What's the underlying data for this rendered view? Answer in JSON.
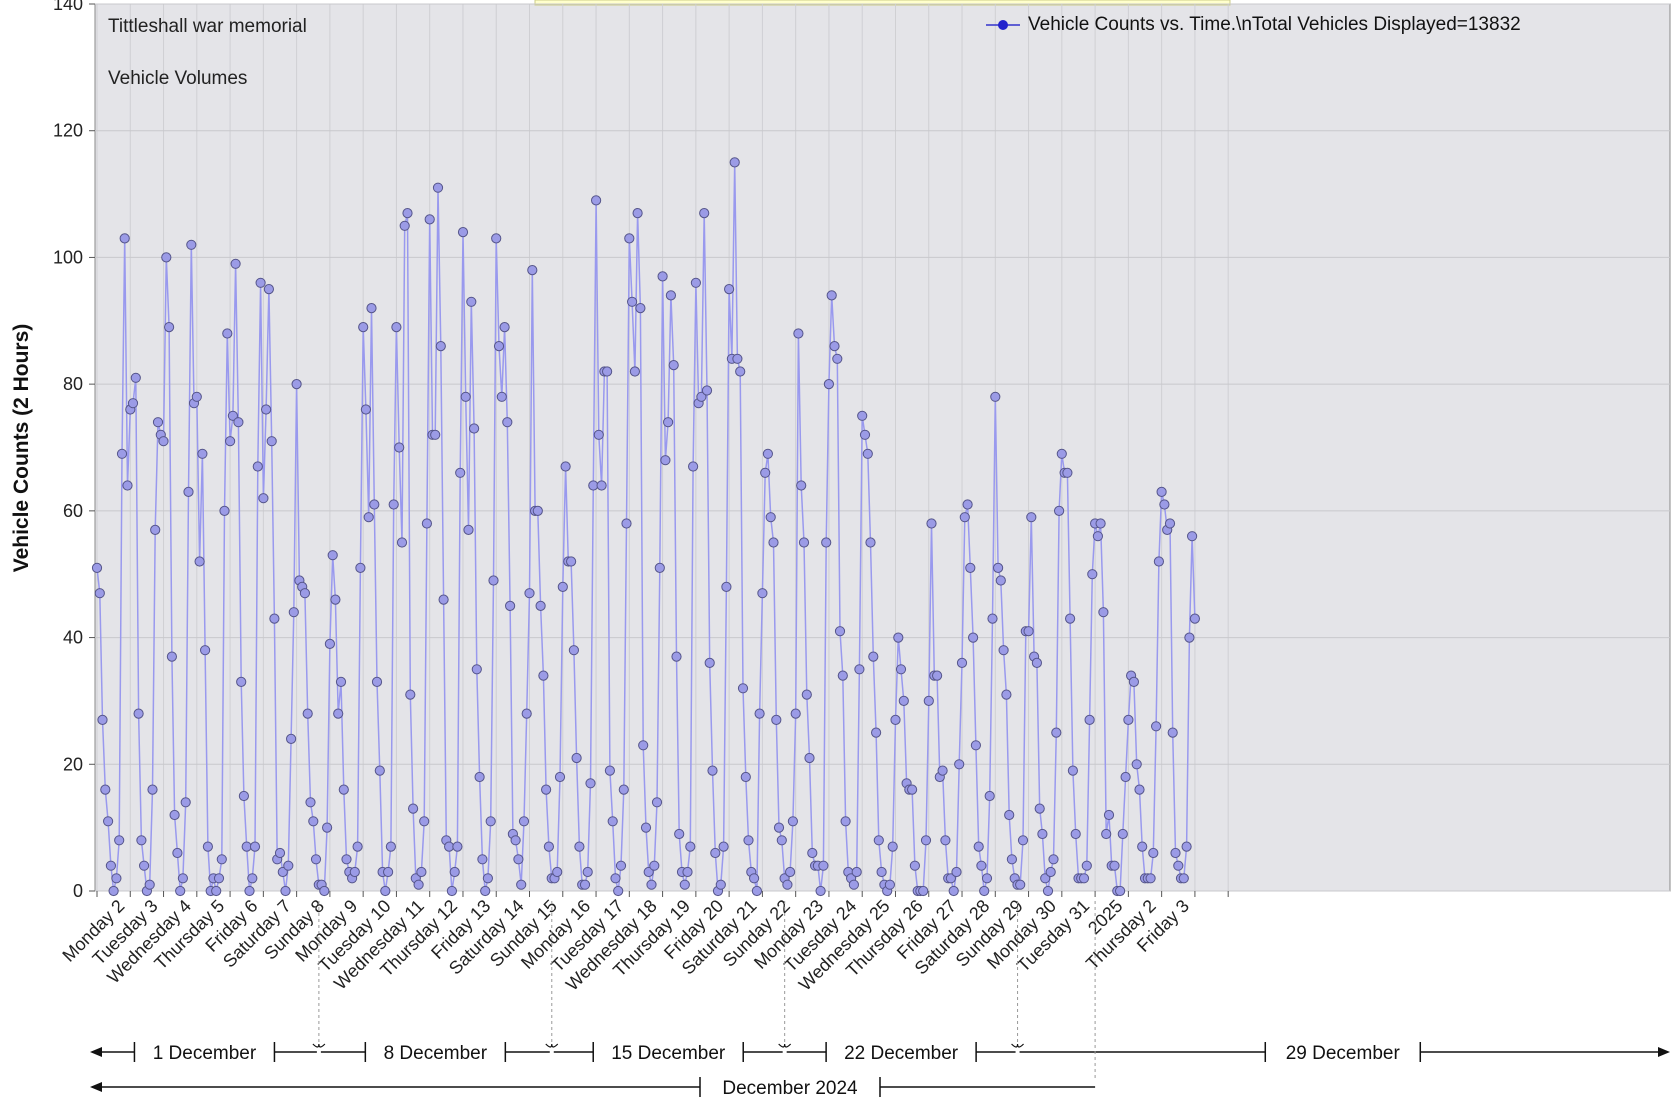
{
  "chart_data": {
    "type": "line",
    "title": "Tittleshall war memorial",
    "subtitle": "Vehicle Volumes",
    "ylabel": "Vehicle Counts (2 Hours)",
    "xlabel": "",
    "ylim": [
      0,
      140
    ],
    "yticks": [
      0,
      20,
      40,
      60,
      80,
      100,
      120,
      140
    ],
    "grid": true,
    "legend": "top-right",
    "series": [
      {
        "name": "Vehicle Counts vs. Time.\\nTotal Vehicles Displayed=13832",
        "color": "#9999ee",
        "marker_color": "#9b9be6",
        "values": [
          51,
          47,
          27,
          16,
          11,
          4,
          0,
          2,
          8,
          69,
          103,
          64,
          76,
          77,
          81,
          28,
          8,
          4,
          0,
          1,
          16,
          57,
          74,
          72,
          71,
          100,
          89,
          37,
          12,
          6,
          0,
          2,
          14,
          63,
          102,
          77,
          78,
          52,
          69,
          38,
          7,
          0,
          2,
          0,
          2,
          5,
          60,
          88,
          71,
          75,
          99,
          74,
          33,
          15,
          7,
          0,
          2,
          7,
          67,
          96,
          62,
          76,
          95,
          71,
          43,
          5,
          6,
          3,
          0,
          4,
          24,
          44,
          80,
          49,
          48,
          47,
          28,
          14,
          11,
          5,
          1,
          1,
          0,
          10,
          39,
          53,
          46,
          28,
          33,
          16,
          5,
          3,
          2,
          3,
          7,
          51,
          89,
          76,
          59,
          92,
          61,
          33,
          19,
          3,
          0,
          3,
          7,
          61,
          89,
          70,
          55,
          105,
          107,
          31,
          13,
          2,
          1,
          3,
          11,
          58,
          106,
          72,
          72,
          111,
          86,
          46,
          8,
          7,
          0,
          3,
          7,
          66,
          104,
          78,
          57,
          93,
          73,
          35,
          18,
          5,
          0,
          2,
          11,
          49,
          103,
          86,
          78,
          89,
          74,
          45,
          9,
          8,
          5,
          1,
          11,
          28,
          47,
          98,
          60,
          60,
          45,
          34,
          16,
          7,
          2,
          2,
          3,
          18,
          48,
          67,
          52,
          52,
          38,
          21,
          7,
          1,
          1,
          3,
          17,
          64,
          109,
          72,
          64,
          82,
          82,
          19,
          11,
          2,
          0,
          4,
          16,
          58,
          103,
          93,
          82,
          107,
          92,
          23,
          10,
          3,
          1,
          4,
          14,
          51,
          97,
          68,
          74,
          94,
          83,
          37,
          9,
          3,
          1,
          3,
          7,
          67,
          96,
          77,
          78,
          107,
          79,
          36,
          19,
          6,
          0,
          1,
          7,
          48,
          95,
          84,
          115,
          84,
          82,
          32,
          18,
          8,
          3,
          2,
          0,
          28,
          47,
          66,
          69,
          59,
          55,
          27,
          10,
          8,
          2,
          1,
          3,
          11,
          28,
          88,
          64,
          55,
          31,
          21,
          6,
          4,
          4,
          0,
          4,
          55,
          80,
          94,
          86,
          84,
          41,
          34,
          11,
          3,
          2,
          1,
          3,
          35,
          75,
          72,
          69,
          55,
          37,
          25,
          8,
          3,
          1,
          0,
          1,
          7,
          27,
          40,
          35,
          30,
          17,
          16,
          16,
          4,
          0,
          0,
          0,
          8,
          30,
          58,
          34,
          34,
          18,
          19,
          8,
          2,
          2,
          0,
          3,
          20,
          36,
          59,
          61,
          51,
          40,
          23,
          7,
          4,
          0,
          2,
          15,
          43,
          78,
          51,
          49,
          38,
          31,
          12,
          5,
          2,
          1,
          1,
          8,
          41,
          41,
          59,
          37,
          36,
          13,
          9,
          2,
          0,
          3,
          5,
          25,
          60,
          69,
          66,
          66,
          43,
          19,
          9,
          2,
          2,
          2,
          4,
          27,
          50,
          58,
          56,
          58,
          44,
          9,
          12,
          4,
          4,
          0,
          0,
          9,
          18,
          27,
          34,
          33,
          20,
          16,
          7,
          2,
          2,
          2,
          6,
          26,
          52,
          63,
          61,
          57,
          58,
          25,
          6,
          4,
          2,
          2,
          7,
          40,
          56,
          43
        ]
      }
    ],
    "day_labels": [
      "Monday 2",
      "Tuesday 3",
      "Wednesday 4",
      "Thursday 5",
      "Friday 6",
      "Saturday 7",
      "Sunday 8",
      "Monday 9",
      "Tuesday 10",
      "Wednesday 11",
      "Thursday 12",
      "Friday 13",
      "Saturday 14",
      "Sunday 15",
      "Monday 16",
      "Tuesday 17",
      "Wednesday 18",
      "Thursday 19",
      "Friday 20",
      "Saturday 21",
      "Sunday 22",
      "Monday 23",
      "Tuesday 24",
      "Wednesday 25",
      "Thursday 26",
      "Friday 27",
      "Saturday 28",
      "Sunday 29",
      "Monday 30",
      "Tuesday 31",
      "2025",
      "Thursday 2",
      "Friday 3"
    ],
    "week_labels": [
      "1 December",
      "8 December",
      "15 December",
      "22 December",
      "29 December"
    ],
    "month_label": "December 2024"
  }
}
